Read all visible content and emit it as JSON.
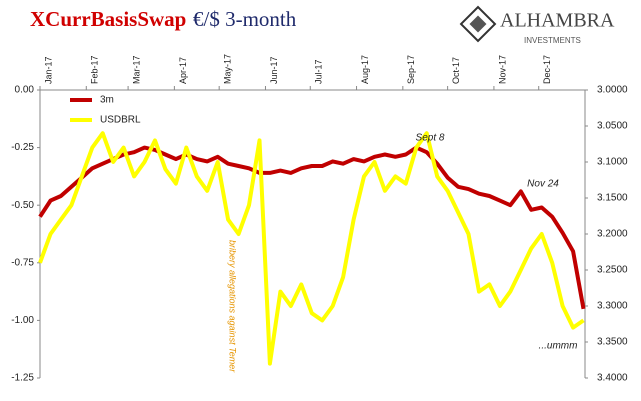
{
  "chart_data": {
    "type": "line",
    "title": "XCurrBasisSwap",
    "subtitle": "€/$ 3-month",
    "logo": {
      "name": "ALHAMBRA",
      "tagline": "INVESTMENTS"
    },
    "x": [
      0,
      7,
      14,
      21,
      28,
      35,
      42,
      49,
      56,
      63,
      70,
      77,
      84,
      91,
      98,
      105,
      112,
      119,
      126,
      133,
      140,
      147,
      154,
      161,
      168,
      175,
      182,
      189,
      196,
      203,
      210,
      217,
      224,
      231,
      238,
      245,
      252,
      259,
      266,
      273,
      280,
      287,
      294,
      301,
      308,
      315,
      322,
      329,
      336,
      343,
      350,
      357,
      364
    ],
    "xlim": [
      0,
      365
    ],
    "xticks": [
      {
        "value": 0,
        "label": "Jan-17"
      },
      {
        "value": 31,
        "label": "Feb-17"
      },
      {
        "value": 59,
        "label": "Mar-17"
      },
      {
        "value": 90,
        "label": "Apr-17"
      },
      {
        "value": 120,
        "label": "May-17"
      },
      {
        "value": 151,
        "label": "Jun-17"
      },
      {
        "value": 181,
        "label": "Jul-17"
      },
      {
        "value": 212,
        "label": "Aug-17"
      },
      {
        "value": 243,
        "label": "Sep-17"
      },
      {
        "value": 273,
        "label": "Oct-17"
      },
      {
        "value": 304,
        "label": "Nov-17"
      },
      {
        "value": 334,
        "label": "Dec-17"
      }
    ],
    "ylim": [
      -1.25,
      0
    ],
    "yticks": [
      {
        "value": 0,
        "label": "0.00"
      },
      -0.25,
      {
        "value": -0.5,
        "label": "-0.50"
      },
      -0.75,
      {
        "value": -1,
        "label": "-1.00"
      },
      -1.25
    ],
    "y2lim": [
      3.4,
      3.0
    ],
    "y2ticks": [
      {
        "value": 3.0,
        "label": "3.0000"
      },
      {
        "value": 3.05,
        "label": "3.0500"
      },
      {
        "value": 3.1,
        "label": "3.1000"
      },
      {
        "value": 3.15,
        "label": "3.1500"
      },
      {
        "value": 3.2,
        "label": "3.2000"
      },
      {
        "value": 3.25,
        "label": "3.2500"
      },
      {
        "value": 3.3,
        "label": "3.3000"
      },
      {
        "value": 3.35,
        "label": "3.3500"
      },
      {
        "value": 3.4,
        "label": "3.4000"
      }
    ],
    "grid": false,
    "series": [
      {
        "name": "3m",
        "color": "#c00000",
        "values": [
          -0.55,
          -0.48,
          -0.46,
          -0.42,
          -0.38,
          -0.34,
          -0.32,
          -0.3,
          -0.28,
          -0.27,
          -0.25,
          -0.26,
          -0.28,
          -0.3,
          -0.28,
          -0.3,
          -0.31,
          -0.29,
          -0.32,
          -0.33,
          -0.34,
          -0.36,
          -0.36,
          -0.35,
          -0.36,
          -0.34,
          -0.33,
          -0.33,
          -0.31,
          -0.32,
          -0.3,
          -0.31,
          -0.29,
          -0.28,
          -0.29,
          -0.28,
          -0.25,
          -0.27,
          -0.32,
          -0.38,
          -0.42,
          -0.43,
          -0.45,
          -0.46,
          -0.48,
          -0.5,
          -0.44,
          -0.52,
          -0.51,
          -0.55,
          -0.62,
          -0.7,
          -0.95
        ]
      },
      {
        "name": "USDBRL",
        "color": "#ffff00",
        "axis": "y2",
        "values": [
          3.24,
          3.2,
          3.18,
          3.16,
          3.12,
          3.08,
          3.06,
          3.1,
          3.08,
          3.12,
          3.1,
          3.07,
          3.11,
          3.13,
          3.08,
          3.12,
          3.14,
          3.1,
          3.18,
          3.2,
          3.16,
          3.07,
          3.38,
          3.28,
          3.3,
          3.27,
          3.31,
          3.32,
          3.3,
          3.26,
          3.18,
          3.12,
          3.1,
          3.14,
          3.12,
          3.13,
          3.08,
          3.06,
          3.12,
          3.14,
          3.17,
          3.2,
          3.28,
          3.27,
          3.3,
          3.28,
          3.25,
          3.22,
          3.2,
          3.24,
          3.3,
          3.33,
          3.32
        ]
      }
    ],
    "annotations": [
      "Sept 8",
      "Nov 24",
      "bribery allegations against Temer",
      "...ummm"
    ]
  }
}
